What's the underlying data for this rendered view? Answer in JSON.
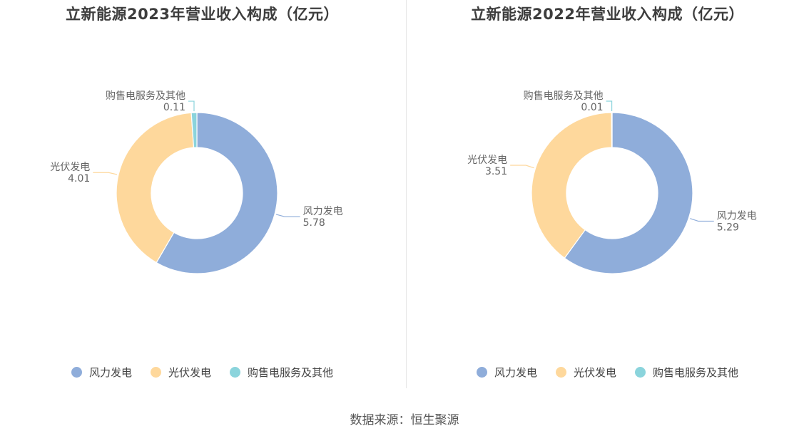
{
  "colors": {
    "series": [
      "#8fadda",
      "#fed89c",
      "#8bd4dc"
    ]
  },
  "source_text": "数据来源：恒生聚源",
  "chart_data": [
    {
      "type": "pie",
      "title": "立新能源2023年营业收入构成（亿元）",
      "categories": [
        "风力发电",
        "光伏发电",
        "购售电服务及其他"
      ],
      "values": [
        5.78,
        4.01,
        0.11
      ],
      "value_labels": [
        "5.78",
        "4.01",
        "0.11"
      ],
      "donut": true,
      "legend_position": "bottom"
    },
    {
      "type": "pie",
      "title": "立新能源2022年营业收入构成（亿元）",
      "categories": [
        "风力发电",
        "光伏发电",
        "购售电服务及其他"
      ],
      "values": [
        5.29,
        3.51,
        0.01
      ],
      "value_labels": [
        "5.29",
        "3.51",
        "0.01"
      ],
      "donut": true,
      "legend_position": "bottom"
    }
  ]
}
